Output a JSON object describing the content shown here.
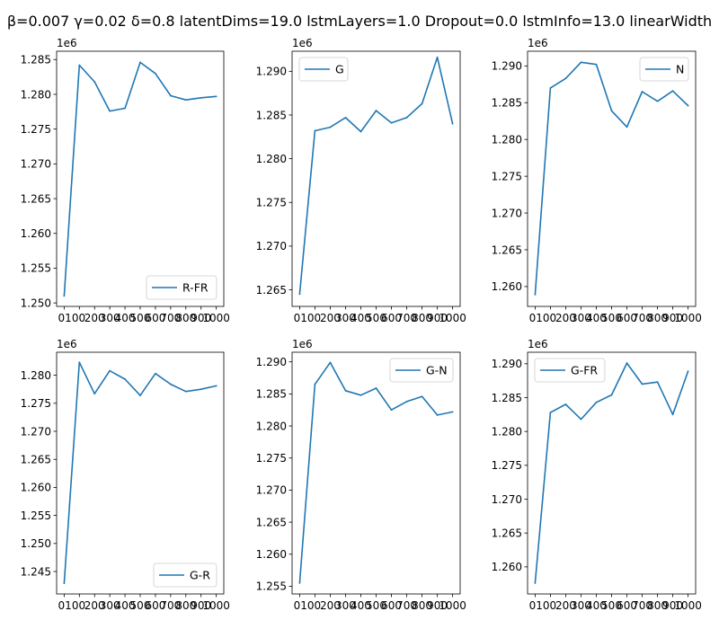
{
  "figure": {
    "title": "β=0.007 γ=0.02 δ=0.8 latentDims=19.0 lstmLayers=1.0 Dropout=0.0 lstmInfo=13.0 linearWidth",
    "line_color": "#1f77b4"
  },
  "chart_data": [
    {
      "type": "line",
      "x": [
        "0",
        "100",
        "200",
        "300",
        "400",
        "500",
        "600",
        "700",
        "800",
        "900",
        "1000"
      ],
      "xticklabels": [
        "0100",
        "200",
        "300",
        "400",
        "500",
        "600",
        "700",
        "800",
        "900",
        "1000"
      ],
      "series": [
        {
          "name": "R-FR",
          "values": [
            1251000,
            1284200,
            1281800,
            1277600,
            1278000,
            1284600,
            1283000,
            1279800,
            1279200,
            1279500,
            1279700
          ]
        }
      ],
      "ylim": [
        1249500,
        1286200
      ],
      "yticks": [
        "1.250",
        "1.255",
        "1.260",
        "1.265",
        "1.270",
        "1.275",
        "1.280",
        "1.285"
      ],
      "offset_text": "1e6",
      "legend_loc": "lower right"
    },
    {
      "type": "line",
      "x": [
        "0",
        "100",
        "200",
        "300",
        "400",
        "500",
        "600",
        "700",
        "800",
        "900",
        "1000"
      ],
      "xticklabels": [
        "0100",
        "200",
        "300",
        "400",
        "500",
        "600",
        "700",
        "800",
        "900",
        "1000"
      ],
      "series": [
        {
          "name": "G",
          "values": [
            1264500,
            1283200,
            1283600,
            1284700,
            1283100,
            1285500,
            1284100,
            1284700,
            1286300,
            1291600,
            1284000
          ]
        }
      ],
      "ylim": [
        1263100,
        1292300
      ],
      "yticks": [
        "1.265",
        "1.270",
        "1.275",
        "1.280",
        "1.285",
        "1.290"
      ],
      "offset_text": "1e6",
      "legend_loc": "upper left"
    },
    {
      "type": "line",
      "x": [
        "0",
        "100",
        "200",
        "300",
        "400",
        "500",
        "600",
        "700",
        "800",
        "900",
        "1000"
      ],
      "xticklabels": [
        "0100",
        "200",
        "300",
        "400",
        "500",
        "600",
        "700",
        "800",
        "900",
        "1000"
      ],
      "series": [
        {
          "name": "N",
          "values": [
            1258900,
            1287000,
            1288300,
            1290500,
            1290200,
            1283900,
            1281700,
            1286500,
            1285200,
            1286600,
            1284600
          ]
        }
      ],
      "ylim": [
        1257300,
        1292000
      ],
      "yticks": [
        "1.260",
        "1.265",
        "1.270",
        "1.275",
        "1.280",
        "1.285",
        "1.290"
      ],
      "offset_text": "1e6",
      "legend_loc": "upper right"
    },
    {
      "type": "line",
      "x": [
        "0",
        "100",
        "200",
        "300",
        "400",
        "500",
        "600",
        "700",
        "800",
        "900",
        "1000"
      ],
      "xticklabels": [
        "0100",
        "200",
        "300",
        "400",
        "500",
        "600",
        "700",
        "800",
        "900",
        "1000"
      ],
      "series": [
        {
          "name": "G-R",
          "values": [
            1242900,
            1282300,
            1276700,
            1280800,
            1279300,
            1276400,
            1280300,
            1278400,
            1277100,
            1277500,
            1278100
          ]
        }
      ],
      "ylim": [
        1241000,
        1284100
      ],
      "yticks": [
        "1.245",
        "1.250",
        "1.255",
        "1.260",
        "1.265",
        "1.270",
        "1.275",
        "1.280"
      ],
      "offset_text": "1e6",
      "legend_loc": "lower right"
    },
    {
      "type": "line",
      "x": [
        "0",
        "100",
        "200",
        "300",
        "400",
        "500",
        "600",
        "700",
        "800",
        "900",
        "1000"
      ],
      "xticklabels": [
        "0100",
        "200",
        "300",
        "400",
        "500",
        "600",
        "700",
        "800",
        "900",
        "1000"
      ],
      "series": [
        {
          "name": "G-N",
          "values": [
            1255500,
            1286500,
            1289900,
            1285500,
            1284800,
            1285900,
            1282500,
            1283800,
            1284600,
            1281700,
            1282200
          ]
        }
      ],
      "ylim": [
        1253800,
        1291500
      ],
      "yticks": [
        "1.255",
        "1.260",
        "1.265",
        "1.270",
        "1.275",
        "1.280",
        "1.285",
        "1.290"
      ],
      "offset_text": "1e6",
      "legend_loc": "upper right"
    },
    {
      "type": "line",
      "x": [
        "0",
        "100",
        "200",
        "300",
        "400",
        "500",
        "600",
        "700",
        "800",
        "900",
        "1000"
      ],
      "xticklabels": [
        "0100",
        "200",
        "300",
        "400",
        "500",
        "600",
        "700",
        "800",
        "900",
        "1000"
      ],
      "series": [
        {
          "name": "G-FR",
          "values": [
            1257600,
            1282800,
            1284000,
            1281800,
            1284300,
            1285400,
            1290100,
            1287000,
            1287300,
            1282500,
            1288900
          ]
        }
      ],
      "ylim": [
        1256000,
        1291700
      ],
      "yticks": [
        "1.260",
        "1.265",
        "1.270",
        "1.275",
        "1.280",
        "1.285",
        "1.290"
      ],
      "offset_text": "1e6",
      "legend_loc": "upper left"
    }
  ]
}
